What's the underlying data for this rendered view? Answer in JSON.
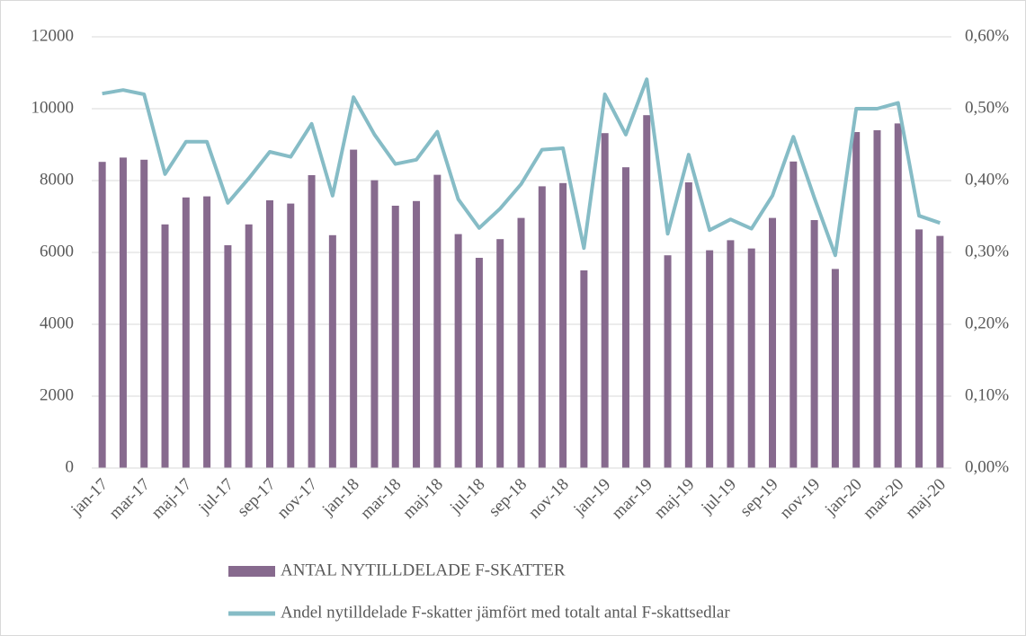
{
  "chart_data": {
    "type": "bar_line",
    "categories": [
      "jan-17",
      null,
      "mar-17",
      null,
      "maj-17",
      null,
      "jul-17",
      null,
      "sep-17",
      null,
      "nov-17",
      null,
      "jan-18",
      null,
      "mar-18",
      null,
      "maj-18",
      null,
      "jul-18",
      null,
      "sep-18",
      null,
      "nov-18",
      null,
      "jan-19",
      null,
      "mar-19",
      null,
      "maj-19",
      null,
      "jul-19",
      null,
      "sep-19",
      null,
      "nov-19",
      null,
      "jan-20",
      null,
      "mar-20",
      null,
      "maj-20"
    ],
    "series": [
      {
        "name": "ANTAL NYTILLDELADE F-SKATTER",
        "type": "bar",
        "color": "#876a8e",
        "values": [
          8520,
          8640,
          8580,
          6780,
          7530,
          7560,
          6200,
          6780,
          7450,
          7360,
          8150,
          6480,
          8860,
          8010,
          7300,
          7430,
          8160,
          6510,
          5850,
          6370,
          6960,
          7840,
          7930,
          5500,
          9320,
          8370,
          9820,
          5920,
          7950,
          6060,
          6340,
          6110,
          6960,
          8530,
          6900,
          5540,
          9350,
          9400,
          9590,
          6640,
          6460
        ]
      },
      {
        "name": "Andel nytilldelade F-skatter jämfört med totalt antal F-skattsedlar",
        "type": "line",
        "axis": "y2",
        "color": "#86bcc6",
        "values": [
          0.521,
          0.526,
          0.52,
          0.409,
          0.454,
          0.454,
          0.369,
          0.403,
          0.44,
          0.433,
          0.479,
          0.379,
          0.516,
          0.464,
          0.423,
          0.429,
          0.468,
          0.374,
          0.334,
          0.361,
          0.395,
          0.443,
          0.445,
          0.306,
          0.52,
          0.464,
          0.541,
          0.326,
          0.436,
          0.331,
          0.346,
          0.333,
          0.379,
          0.461,
          0.376,
          0.296,
          0.5,
          0.5,
          0.508,
          0.351,
          0.341
        ]
      }
    ],
    "ylim": [
      0,
      12000
    ],
    "yticks": [
      0,
      2000,
      4000,
      6000,
      8000,
      10000,
      12000
    ],
    "y2lim": [
      0,
      0.6
    ],
    "y2ticks": [
      {
        "value": 0,
        "label": "0,00%"
      },
      {
        "value": 0.1,
        "label": "0,10%"
      },
      {
        "value": 0.2,
        "label": "0,20%"
      },
      {
        "value": 0.3,
        "label": "0,30%"
      },
      {
        "value": 0.4,
        "label": "0,40%"
      },
      {
        "value": 0.5,
        "label": "0,50%"
      },
      {
        "value": 0.6,
        "label": "0,60%"
      }
    ],
    "grid": true,
    "legend": "bottom"
  }
}
